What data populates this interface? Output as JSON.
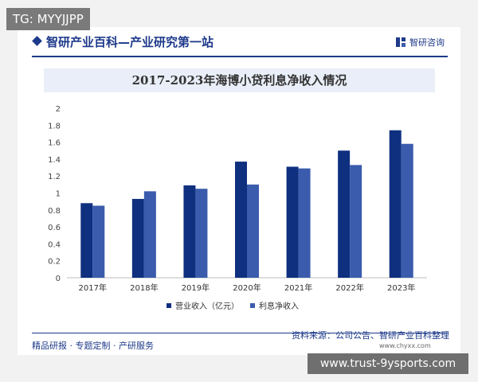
{
  "tag_label": "TG: MYYJJPP",
  "header": {
    "title": "智研产业百科—产业研究第一站",
    "brand": "智研咨询"
  },
  "footer": {
    "left": "精品研报 · 专题定制 · 产研服务",
    "source": "资料来源：公司公告、智研产业百科整理",
    "url": "www.chyxx.com"
  },
  "watermark_text": "www.trust-9ysports.com",
  "colors": {
    "primary": "#0f2f7f",
    "secondary": "#3b5cad",
    "accent": "#1e3a8a"
  },
  "chart_data": {
    "type": "bar",
    "title": "2017-2023年海博小贷利息净收入情况",
    "categories": [
      "2017年",
      "2018年",
      "2019年",
      "2020年",
      "2021年",
      "2022年",
      "2023年"
    ],
    "series": [
      {
        "name": "营业收入（亿元）",
        "values": [
          0.88,
          0.93,
          1.09,
          1.37,
          1.31,
          1.5,
          1.74
        ]
      },
      {
        "name": "利息净收入",
        "values": [
          0.85,
          1.02,
          1.05,
          1.1,
          1.29,
          1.33,
          1.58
        ]
      }
    ],
    "yticks": [
      "0",
      "0.2",
      "0.4",
      "0.6",
      "0.8",
      "1",
      "1.2",
      "1.4",
      "1.6",
      "1.8",
      "2"
    ],
    "ylim": [
      0,
      2
    ],
    "grid": false,
    "legend": "bottom"
  }
}
